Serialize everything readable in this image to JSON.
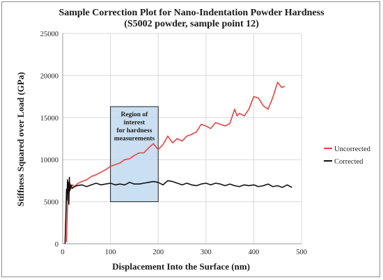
{
  "chart_data": {
    "type": "line",
    "title_line1": "Sample Correction Plot for Nano-Indentation Powder Hardness",
    "title_line2": "(S5002 powder, sample point 12)",
    "xlabel": "Displacement Into the Surface (nm)",
    "ylabel": "Stiffness Squared over Load (GPa)",
    "xlim": [
      0,
      500
    ],
    "ylim": [
      0,
      25000
    ],
    "xticks": [
      0,
      100,
      200,
      300,
      400,
      500
    ],
    "yticks": [
      0,
      5000,
      10000,
      15000,
      20000,
      25000
    ],
    "xtick_labels": [
      "0",
      "100",
      "200",
      "300",
      "400",
      "500"
    ],
    "ytick_labels": [
      "0",
      "5000",
      "10000",
      "15000",
      "20000",
      "25000"
    ],
    "grid": true,
    "legend_position": "right",
    "region": {
      "label_lines": [
        "Region of",
        "interest",
        "for hardness",
        "measurements"
      ],
      "x_range": [
        100,
        200
      ],
      "y_range": [
        5000,
        16300
      ],
      "color": "#bdd7ee"
    },
    "series": [
      {
        "name": "Uncorrected",
        "color": "#e8413f",
        "x": [
          8,
          10,
          12,
          13,
          15,
          17,
          20,
          25,
          30,
          40,
          50,
          60,
          70,
          80,
          90,
          100,
          110,
          120,
          130,
          140,
          150,
          160,
          170,
          180,
          190,
          200,
          210,
          220,
          230,
          240,
          250,
          260,
          270,
          280,
          290,
          300,
          310,
          320,
          330,
          340,
          350,
          360,
          365,
          370,
          380,
          390,
          400,
          410,
          420,
          430,
          440,
          450,
          458,
          465
        ],
        "y": [
          200,
          4500,
          7000,
          6000,
          7200,
          6500,
          7000,
          6800,
          7100,
          7400,
          7600,
          8000,
          8200,
          8500,
          8800,
          9200,
          9400,
          9600,
          10000,
          10100,
          10500,
          10800,
          10800,
          11400,
          11900,
          11200,
          11800,
          12800,
          12000,
          12500,
          12200,
          12800,
          13000,
          13300,
          14200,
          14000,
          13700,
          14400,
          14200,
          14000,
          14300,
          16000,
          15200,
          15500,
          15200,
          16000,
          17500,
          17300,
          16400,
          16000,
          17400,
          19200,
          18600,
          18700
        ]
      },
      {
        "name": "Corrected",
        "color": "#111111",
        "x": [
          5,
          7,
          8,
          9,
          10,
          11,
          12,
          13,
          14,
          15,
          17,
          20,
          25,
          30,
          40,
          50,
          60,
          70,
          80,
          90,
          100,
          110,
          120,
          130,
          140,
          150,
          160,
          170,
          180,
          190,
          200,
          210,
          220,
          230,
          240,
          250,
          260,
          270,
          280,
          290,
          300,
          310,
          320,
          330,
          340,
          350,
          360,
          370,
          380,
          390,
          400,
          410,
          420,
          430,
          440,
          450,
          460,
          470,
          480
        ],
        "y": [
          0,
          4000,
          6500,
          5200,
          7600,
          6000,
          7300,
          4700,
          7900,
          6300,
          7000,
          6600,
          6800,
          6900,
          7000,
          6800,
          7000,
          7200,
          7000,
          7100,
          7200,
          7000,
          7100,
          7000,
          7300,
          7100,
          7100,
          7200,
          7300,
          7400,
          7300,
          7000,
          7500,
          7400,
          7200,
          7000,
          7200,
          7000,
          6900,
          7100,
          7200,
          7000,
          7200,
          7100,
          6900,
          7100,
          6900,
          6800,
          7000,
          6900,
          7000,
          6800,
          6900,
          7100,
          6800,
          6900,
          6700,
          7000,
          6700
        ]
      }
    ]
  }
}
